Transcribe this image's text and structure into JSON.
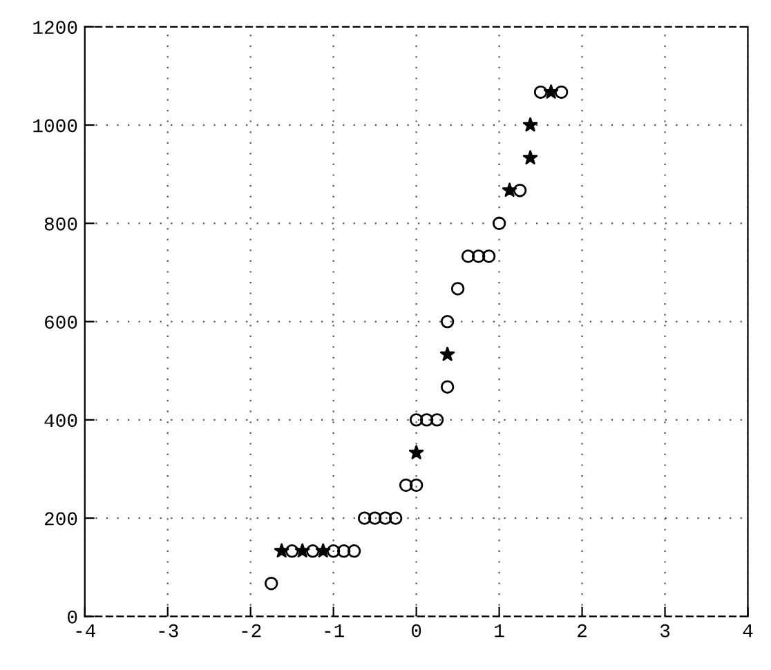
{
  "chart_data": {
    "type": "scatter",
    "xlim": [
      -4,
      4
    ],
    "ylim": [
      0,
      1200
    ],
    "xticks": [
      -4,
      -3,
      -2,
      -1,
      0,
      1,
      2,
      3,
      4
    ],
    "yticks": [
      0,
      200,
      400,
      600,
      800,
      1000,
      1200
    ],
    "grid": true,
    "series": [
      {
        "color": "#000000",
        "marker": "circle",
        "x": [
          -1.75,
          -1.5,
          -1.25,
          -1.0,
          -0.875,
          -0.75,
          -0.625,
          -0.5,
          -0.375,
          -0.25,
          -0.125,
          0,
          0,
          0.125,
          0.25,
          0.375,
          0.375,
          0.5,
          0.625,
          0.75,
          0.875,
          1.0,
          1.25,
          1.5,
          1.75
        ],
        "values": [
          67,
          133,
          133,
          133,
          133,
          133,
          200,
          200,
          200,
          200,
          267,
          267,
          400,
          400,
          400,
          467,
          600,
          667,
          733,
          733,
          733,
          800,
          867,
          1067,
          1067
        ]
      },
      {
        "color": "#000000",
        "marker": "star",
        "x": [
          -1.625,
          -1.375,
          -1.125,
          0,
          0.375,
          1.125,
          1.375,
          1.375,
          1.625
        ],
        "values": [
          133,
          133,
          133,
          333,
          533,
          867,
          933,
          1000,
          1067
        ]
      }
    ]
  }
}
